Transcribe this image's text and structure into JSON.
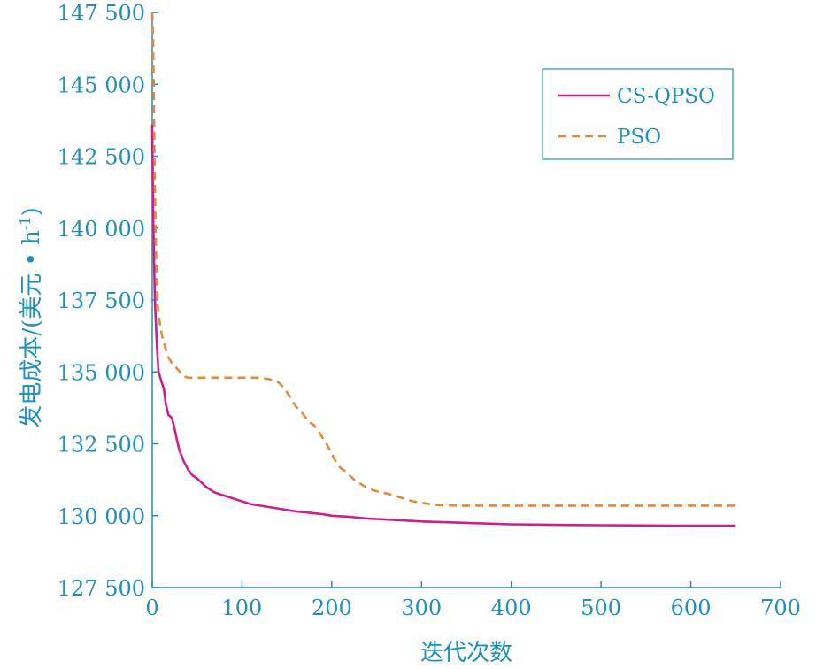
{
  "chart_data": {
    "type": "line",
    "xlabel": "迭代次数",
    "ylabel": "发电成本/(美元 • h",
    "ylabel_superscript": "-1",
    "ylabel_close": ")",
    "xlim": [
      0,
      700
    ],
    "ylim": [
      127500,
      147500
    ],
    "x_ticks": [
      0,
      100,
      200,
      300,
      400,
      500,
      600,
      700
    ],
    "x_tick_labels": [
      "0",
      "100",
      "200",
      "300",
      "400",
      "500",
      "600",
      "700"
    ],
    "y_ticks": [
      127500,
      130000,
      132500,
      135000,
      137500,
      140000,
      142500,
      145000,
      147500
    ],
    "y_tick_labels": [
      "127 500",
      "130 000",
      "132 500",
      "135 000",
      "137 500",
      "140 000",
      "142 500",
      "145 000",
      "147 500"
    ],
    "grid": false,
    "legend_position": "top-right",
    "series": [
      {
        "name": "CS-QPSO",
        "color": "#cc1f8f",
        "dash": "solid",
        "x": [
          0,
          1,
          2,
          3,
          5,
          7,
          10,
          13,
          15,
          18,
          22,
          25,
          30,
          35,
          40,
          45,
          50,
          60,
          70,
          80,
          90,
          100,
          110,
          120,
          130,
          140,
          150,
          160,
          170,
          180,
          190,
          200,
          210,
          220,
          230,
          240,
          250,
          270,
          300,
          350,
          400,
          450,
          500,
          550,
          600,
          650
        ],
        "y": [
          143600,
          140500,
          139000,
          137500,
          136000,
          135000,
          134700,
          134400,
          133900,
          133500,
          133400,
          133000,
          132300,
          131900,
          131600,
          131400,
          131300,
          131000,
          130800,
          130700,
          130600,
          130500,
          130400,
          130350,
          130300,
          130250,
          130200,
          130150,
          130120,
          130080,
          130050,
          130000,
          129980,
          129960,
          129930,
          129900,
          129880,
          129850,
          129800,
          129750,
          129700,
          129680,
          129670,
          129660,
          129650,
          129650
        ]
      },
      {
        "name": "PSO",
        "color": "#e08a3a",
        "dash": "dashed",
        "x": [
          0,
          1,
          2,
          3,
          4,
          5,
          6,
          8,
          10,
          12,
          15,
          18,
          22,
          28,
          35,
          40,
          60,
          80,
          100,
          110,
          120,
          130,
          140,
          145,
          150,
          155,
          160,
          165,
          170,
          175,
          180,
          185,
          190,
          195,
          200,
          205,
          210,
          215,
          220,
          225,
          230,
          235,
          240,
          250,
          260,
          270,
          280,
          290,
          300,
          310,
          320,
          340,
          400,
          500,
          600,
          650
        ],
        "y": [
          147500,
          146500,
          144000,
          141500,
          139500,
          138200,
          137300,
          136800,
          136400,
          136100,
          135800,
          135500,
          135300,
          135100,
          134850,
          134800,
          134800,
          134800,
          134800,
          134800,
          134800,
          134750,
          134650,
          134500,
          134300,
          134050,
          133800,
          133650,
          133450,
          133250,
          133150,
          132950,
          132700,
          132450,
          132150,
          131850,
          131650,
          131550,
          131400,
          131250,
          131150,
          131050,
          130950,
          130850,
          130780,
          130700,
          130600,
          130500,
          130450,
          130400,
          130360,
          130350,
          130350,
          130350,
          130350,
          130350
        ]
      }
    ]
  }
}
